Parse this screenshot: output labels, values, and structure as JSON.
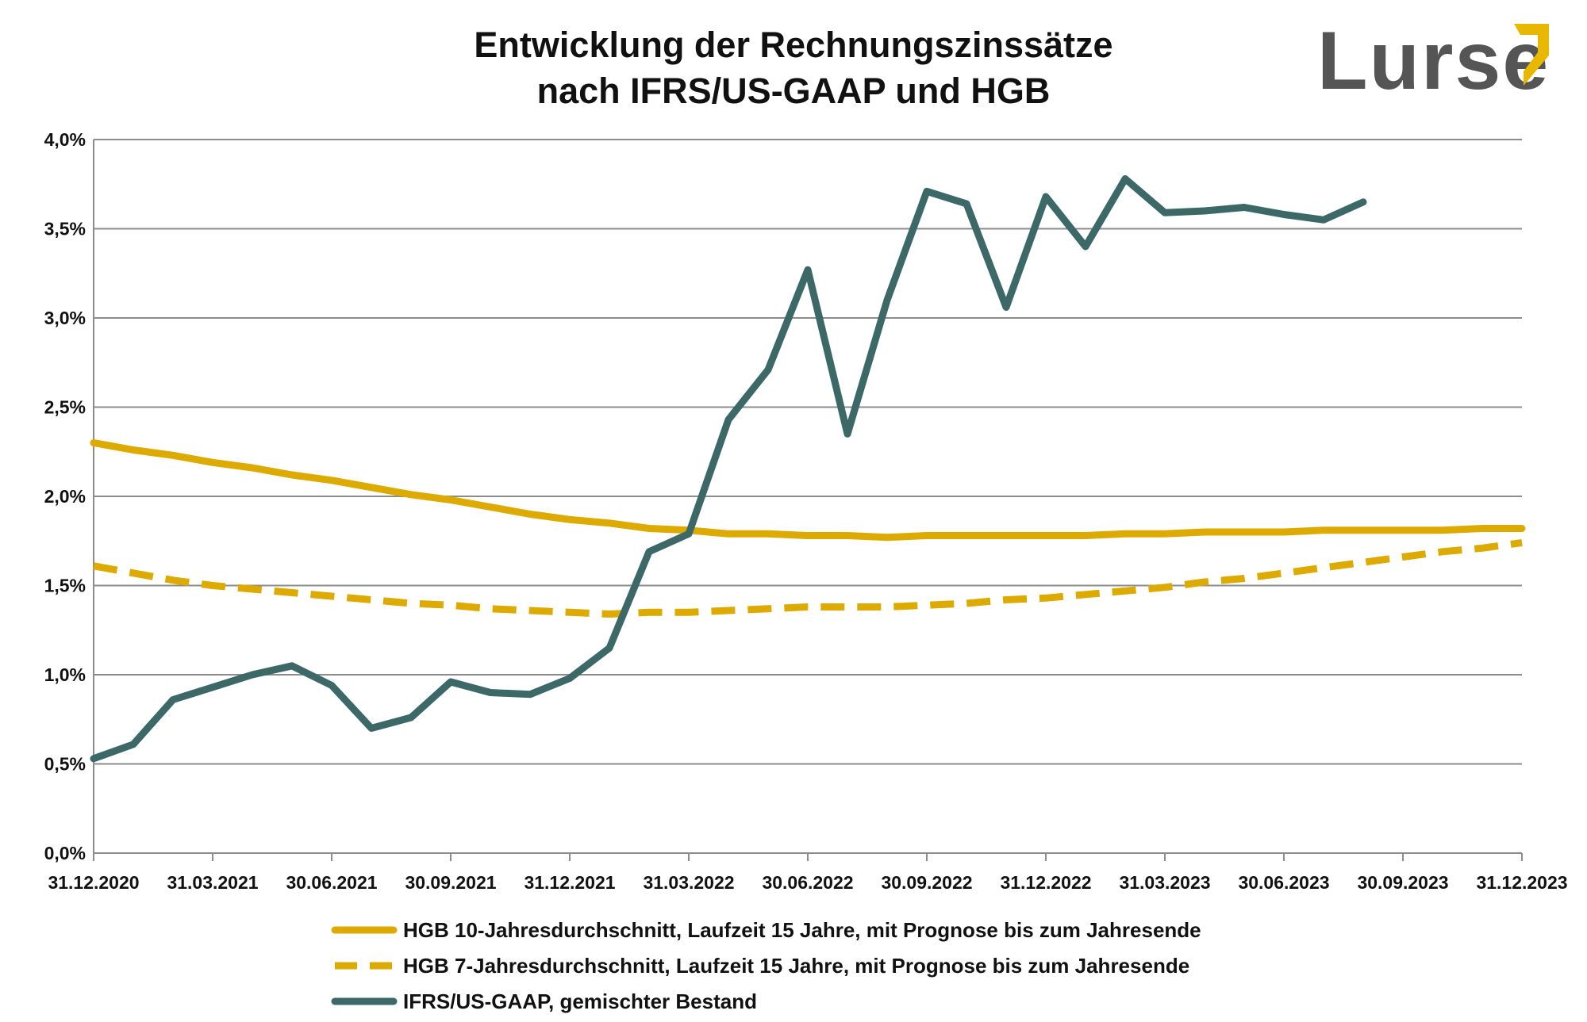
{
  "chart_data": {
    "type": "line",
    "title": [
      "Entwicklung der Rechnungszinssätze",
      "nach IFRS/US-GAAP und HGB"
    ],
    "ylim": [
      0,
      4.0
    ],
    "ytick_labels": [
      "0,0%",
      "0,5%",
      "1,0%",
      "1,5%",
      "2,0%",
      "2,5%",
      "3,0%",
      "3,5%",
      "4,0%"
    ],
    "ytick_values": [
      0,
      0.5,
      1.0,
      1.5,
      2.0,
      2.5,
      3.0,
      3.5,
      4.0
    ],
    "x_range_months": [
      0,
      36
    ],
    "xtick_labels": [
      "31.12.2020",
      "31.03.2021",
      "30.06.2021",
      "30.09.2021",
      "31.12.2021",
      "31.03.2022",
      "30.06.2022",
      "30.09.2022",
      "31.12.2022",
      "31.03.2023",
      "30.06.2023",
      "30.09.2023",
      "31.12.2023"
    ],
    "xtick_months": [
      0,
      3,
      6,
      9,
      12,
      15,
      18,
      21,
      24,
      27,
      30,
      33,
      36
    ],
    "grid": true,
    "legend_position": "bottom",
    "series": [
      {
        "name": "HGB 10-Jahresdurchschnitt, Laufzeit 15 Jahre, mit Prognose bis zum Jahresende",
        "style": "solid",
        "color": "#DDAA00",
        "x": [
          0,
          1,
          2,
          3,
          4,
          5,
          6,
          7,
          8,
          9,
          10,
          11,
          12,
          13,
          14,
          15,
          16,
          17,
          18,
          19,
          20,
          21,
          22,
          23,
          24,
          25,
          26,
          27,
          28,
          29,
          30,
          31,
          32,
          33,
          34,
          35,
          36
        ],
        "values": [
          2.3,
          2.26,
          2.23,
          2.19,
          2.16,
          2.12,
          2.09,
          2.05,
          2.01,
          1.98,
          1.94,
          1.9,
          1.87,
          1.85,
          1.82,
          1.81,
          1.79,
          1.79,
          1.78,
          1.78,
          1.77,
          1.78,
          1.78,
          1.78,
          1.78,
          1.78,
          1.79,
          1.79,
          1.8,
          1.8,
          1.8,
          1.81,
          1.81,
          1.81,
          1.81,
          1.82,
          1.82
        ]
      },
      {
        "name": "HGB 7-Jahresdurchschnitt, Laufzeit 15 Jahre, mit Prognose bis zum Jahresende",
        "style": "dashed",
        "color": "#DDAA00",
        "x": [
          0,
          1,
          2,
          3,
          4,
          5,
          6,
          7,
          8,
          9,
          10,
          11,
          12,
          13,
          14,
          15,
          16,
          17,
          18,
          19,
          20,
          21,
          22,
          23,
          24,
          25,
          26,
          27,
          28,
          29,
          30,
          31,
          32,
          33,
          34,
          35,
          36
        ],
        "values": [
          1.61,
          1.57,
          1.53,
          1.5,
          1.48,
          1.46,
          1.44,
          1.42,
          1.4,
          1.39,
          1.37,
          1.36,
          1.35,
          1.34,
          1.35,
          1.35,
          1.36,
          1.37,
          1.38,
          1.38,
          1.38,
          1.39,
          1.4,
          1.42,
          1.43,
          1.45,
          1.47,
          1.49,
          1.52,
          1.54,
          1.57,
          1.6,
          1.63,
          1.66,
          1.69,
          1.71,
          1.74
        ]
      },
      {
        "name": "IFRS/US-GAAP, gemischter Bestand",
        "style": "solid",
        "color": "#3D6868",
        "x": [
          0,
          1,
          2,
          3,
          4,
          5,
          6,
          7,
          8,
          9,
          10,
          11,
          12,
          13,
          14,
          15,
          16,
          17,
          18,
          19,
          20,
          21,
          22,
          23,
          24,
          25,
          26,
          27,
          28,
          29,
          30,
          31,
          32
        ],
        "values": [
          0.53,
          0.61,
          0.86,
          0.93,
          1.0,
          1.05,
          0.94,
          0.7,
          0.76,
          0.96,
          0.9,
          0.89,
          0.98,
          1.15,
          1.69,
          1.79,
          2.43,
          2.71,
          3.27,
          2.35,
          3.1,
          3.71,
          3.64,
          3.06,
          3.68,
          3.4,
          3.78,
          3.59,
          3.6,
          3.62,
          3.58,
          3.55,
          3.65
        ]
      }
    ]
  },
  "logo": {
    "text": "Lurse",
    "accent_color": "#E8B700",
    "text_color": "#555555"
  }
}
